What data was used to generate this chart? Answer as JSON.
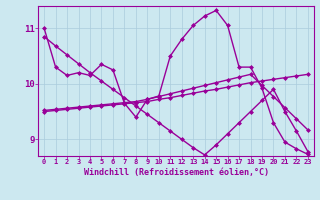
{
  "background_color": "#cce8f0",
  "grid_color": "#aaccdd",
  "line_color": "#990099",
  "marker_style": "D",
  "marker_size": 2.0,
  "line_width": 1.0,
  "xlabel": "Windchill (Refroidissement éolien,°C)",
  "xlabel_fontsize": 6.0,
  "ytick_fontsize": 6.5,
  "xtick_fontsize": 5.0,
  "ylim": [
    8.7,
    11.4
  ],
  "xlim": [
    -0.5,
    23.5
  ],
  "yticks": [
    9,
    10,
    11
  ],
  "xticks": [
    0,
    1,
    2,
    3,
    4,
    5,
    6,
    7,
    8,
    9,
    10,
    11,
    12,
    13,
    14,
    15,
    16,
    17,
    18,
    19,
    20,
    21,
    22,
    23
  ],
  "series": [
    [
      11.0,
      10.3,
      10.15,
      10.2,
      10.15,
      10.35,
      10.25,
      9.65,
      9.4,
      9.72,
      9.78,
      10.5,
      10.8,
      11.05,
      11.22,
      11.32,
      11.05,
      10.3,
      10.3,
      9.92,
      9.3,
      8.95,
      8.83,
      8.73
    ],
    [
      9.5,
      9.52,
      9.54,
      9.56,
      9.58,
      9.6,
      9.62,
      9.64,
      9.66,
      9.68,
      9.72,
      9.75,
      9.79,
      9.83,
      9.87,
      9.9,
      9.94,
      9.98,
      10.02,
      10.05,
      10.08,
      10.11,
      10.14,
      10.17
    ],
    [
      10.85,
      10.68,
      10.52,
      10.36,
      10.2,
      10.05,
      9.9,
      9.75,
      9.6,
      9.45,
      9.3,
      9.15,
      9.0,
      8.85,
      8.72,
      8.9,
      9.1,
      9.3,
      9.5,
      9.7,
      9.9,
      9.5,
      9.15,
      8.78
    ],
    [
      9.52,
      9.54,
      9.56,
      9.58,
      9.6,
      9.62,
      9.64,
      9.66,
      9.68,
      9.72,
      9.77,
      9.82,
      9.87,
      9.92,
      9.97,
      10.02,
      10.07,
      10.12,
      10.17,
      9.97,
      9.77,
      9.57,
      9.37,
      9.17
    ]
  ]
}
